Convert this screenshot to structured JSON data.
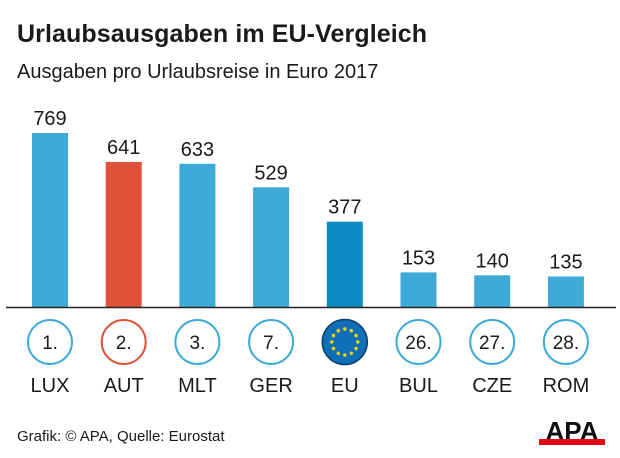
{
  "chart_data": {
    "type": "bar",
    "title": "Urlaubsausgaben im EU-Vergleich",
    "subtitle": "Ausgaben pro Urlaubsreise in Euro 2017",
    "categories": [
      "LUX",
      "AUT",
      "MLT",
      "GER",
      "EU",
      "BUL",
      "CZE",
      "ROM"
    ],
    "ranks": [
      "1.",
      "2.",
      "3.",
      "7.",
      "",
      "26.",
      "27.",
      "28."
    ],
    "values": [
      769,
      641,
      633,
      529,
      377,
      153,
      140,
      135
    ],
    "highlight": {
      "AUT": "#e0513a",
      "EU": "#0b8bc1"
    },
    "bar_color": "#3eaad8",
    "ylim": [
      0,
      769
    ],
    "grid": false,
    "data_labels": true
  },
  "footer": "Grafik: © APA, Quelle: Eurostat",
  "logo": {
    "text": "APA",
    "colors": [
      "#111111",
      "#e30613"
    ]
  }
}
